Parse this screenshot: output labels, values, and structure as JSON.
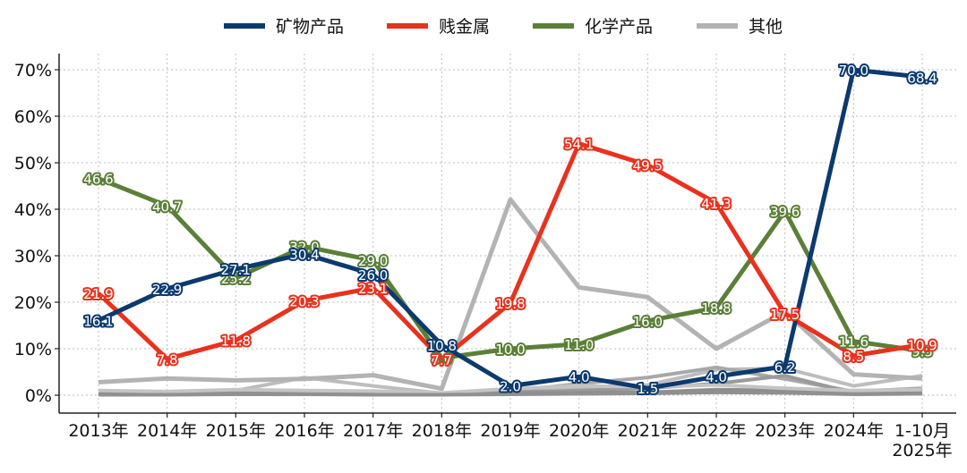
{
  "chart_data": {
    "type": "line",
    "title": "",
    "xlabel": "",
    "ylabel": "",
    "ylim": [
      0,
      72
    ],
    "y_ticks": [
      0,
      10,
      20,
      30,
      40,
      50,
      60,
      70
    ],
    "y_tick_labels": [
      "0%",
      "10%",
      "20%",
      "30%",
      "40%",
      "50%",
      "60%",
      "70%"
    ],
    "categories": [
      "2013年",
      "2014年",
      "2015年",
      "2016年",
      "2017年",
      "2018年",
      "2019年",
      "2020年",
      "2021年",
      "2022年",
      "2023年",
      "2024年",
      "1-10月\n2025年"
    ],
    "grid": true,
    "legend_position": "top",
    "series": [
      {
        "name": "矿物产品",
        "color": "#0b3a6e",
        "labeled": true,
        "values": [
          16.1,
          22.9,
          27.1,
          30.4,
          26.0,
          10.8,
          2.0,
          4.0,
          1.5,
          4.0,
          6.2,
          70.0,
          68.4
        ]
      },
      {
        "name": "贱金属",
        "color": "#e8321e",
        "labeled": true,
        "values": [
          21.9,
          7.8,
          11.8,
          20.3,
          23.1,
          7.7,
          19.8,
          54.1,
          49.5,
          41.3,
          17.5,
          8.5,
          10.9
        ]
      },
      {
        "name": "化学产品",
        "color": "#5b7f38",
        "labeled": true,
        "values": [
          46.6,
          40.7,
          25.2,
          32.0,
          29.0,
          8.0,
          10.0,
          11.0,
          16.0,
          18.8,
          39.6,
          11.6,
          9.5
        ]
      },
      {
        "name": "其他",
        "color": "#b3b3b3",
        "labeled": false,
        "values": [
          2.8,
          3.6,
          3.2,
          3.5,
          4.3,
          1.4,
          42.1,
          23.2,
          21.1,
          10.0,
          18.0,
          4.5,
          3.6
        ]
      }
    ],
    "other_lines": {
      "colors": [
        "#bdbdbd",
        "#a8a8a8",
        "#9a9a9a",
        "#8e8e8e",
        "#c4c4c4",
        "#909090"
      ],
      "series": [
        [
          0.8,
          0.6,
          1.0,
          3.8,
          2.0,
          0.4,
          1.2,
          1.5,
          2.2,
          5.5,
          5.8,
          2.0,
          4.2
        ],
        [
          0.5,
          0.5,
          0.6,
          0.8,
          0.6,
          0.3,
          0.8,
          2.5,
          3.8,
          6.0,
          3.5,
          0.8,
          1.5
        ],
        [
          0.3,
          0.4,
          0.5,
          0.6,
          0.5,
          0.2,
          0.6,
          1.0,
          1.5,
          2.5,
          4.2,
          0.5,
          0.8
        ],
        [
          0.2,
          0.3,
          0.3,
          0.4,
          0.4,
          0.2,
          0.4,
          0.5,
          0.6,
          1.2,
          1.0,
          0.3,
          0.5
        ],
        [
          1.0,
          0.8,
          1.2,
          1.0,
          0.9,
          0.5,
          1.4,
          2.0,
          1.8,
          2.2,
          1.5,
          1.0,
          1.2
        ],
        [
          0.1,
          0.1,
          0.2,
          0.2,
          0.1,
          0.1,
          0.2,
          0.3,
          0.4,
          0.6,
          0.5,
          0.2,
          0.3
        ]
      ]
    }
  }
}
